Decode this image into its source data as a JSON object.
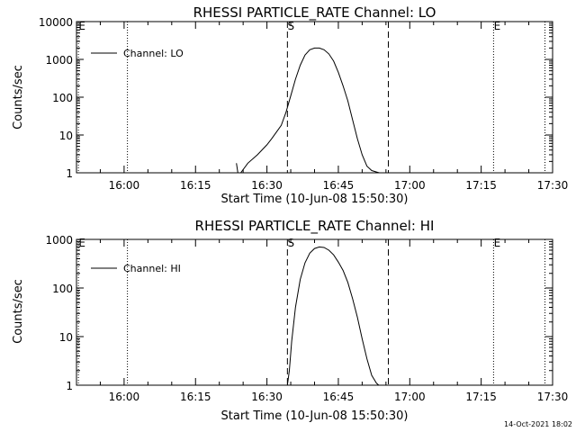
{
  "timestamp": "14-Oct-2021 18:02",
  "chart_data": [
    {
      "type": "line",
      "title": "RHESSI PARTICLE_RATE Channel: LO",
      "xlabel": "Start Time (10-Jun-08 15:50:30)",
      "ylabel": "Counts/sec",
      "yscale": "log",
      "ylim": [
        1,
        10000
      ],
      "xlim_minutes_after_1550": [
        0,
        100
      ],
      "x_tick_labels": [
        "16:00",
        "16:15",
        "16:30",
        "16:45",
        "17:00",
        "17:15",
        "17:30"
      ],
      "x_tick_minutes": [
        10,
        25,
        40,
        55,
        70,
        85,
        100
      ],
      "y_tick_labels": [
        "1",
        "10",
        "100",
        "1000",
        "10000"
      ],
      "y_tick_values": [
        1,
        10,
        100,
        1000,
        10000
      ],
      "legend": "Channel: LO",
      "markers": [
        {
          "label": "E",
          "minute": 0.4,
          "style": "dotted"
        },
        {
          "label": "",
          "minute": 10.7,
          "style": "dotted"
        },
        {
          "label": "S",
          "minute": 44.3,
          "style": "dashed"
        },
        {
          "label": "",
          "minute": 65.5,
          "style": "dashed"
        },
        {
          "label": "E",
          "minute": 87.6,
          "style": "dotted"
        },
        {
          "label": "",
          "minute": 98.4,
          "style": "dotted"
        }
      ],
      "series": [
        {
          "name": "Channel: LO",
          "x": [
            33.6,
            33.9,
            34.5,
            36,
            38,
            40,
            41,
            42,
            43,
            44,
            45,
            46,
            47,
            48,
            49,
            50,
            51,
            52,
            53,
            54,
            55,
            56,
            57,
            58,
            59,
            60,
            61,
            62,
            63,
            63.6
          ],
          "y": [
            1.8,
            1.0,
            1.0,
            1.8,
            3.0,
            5.5,
            8,
            12,
            18,
            40,
            110,
            300,
            700,
            1300,
            1800,
            2000,
            2000,
            1800,
            1400,
            900,
            450,
            200,
            80,
            25,
            8,
            3,
            1.5,
            1.15,
            1.05,
            1.0
          ]
        }
      ]
    },
    {
      "type": "line",
      "title": "RHESSI PARTICLE_RATE Channel: HI",
      "xlabel": "Start Time (10-Jun-08 15:50:30)",
      "ylabel": "Counts/sec",
      "yscale": "log",
      "ylim": [
        1,
        1000
      ],
      "xlim_minutes_after_1550": [
        0,
        100
      ],
      "x_tick_labels": [
        "16:00",
        "16:15",
        "16:30",
        "16:45",
        "17:00",
        "17:15",
        "17:30"
      ],
      "x_tick_minutes": [
        10,
        25,
        40,
        55,
        70,
        85,
        100
      ],
      "y_tick_labels": [
        "1",
        "10",
        "100",
        "1000"
      ],
      "y_tick_values": [
        1,
        10,
        100,
        1000
      ],
      "legend": "Channel: HI",
      "markers": [
        {
          "label": "E",
          "minute": 0.4,
          "style": "dotted"
        },
        {
          "label": "",
          "minute": 10.7,
          "style": "dotted"
        },
        {
          "label": "S",
          "minute": 44.3,
          "style": "dashed"
        },
        {
          "label": "",
          "minute": 65.5,
          "style": "dashed"
        },
        {
          "label": "E",
          "minute": 87.6,
          "style": "dotted"
        },
        {
          "label": "",
          "minute": 98.4,
          "style": "dotted"
        }
      ],
      "series": [
        {
          "name": "Channel: HI",
          "x": [
            44.3,
            44.7,
            45.2,
            46,
            47,
            48,
            49,
            50,
            51,
            52,
            53,
            54,
            55,
            56,
            57,
            58,
            59,
            60,
            61,
            62,
            63,
            63.5
          ],
          "y": [
            1.0,
            2,
            8,
            40,
            150,
            330,
            520,
            650,
            700,
            680,
            600,
            480,
            340,
            230,
            130,
            60,
            25,
            9,
            3.5,
            1.6,
            1.1,
            1.0
          ]
        }
      ]
    }
  ]
}
